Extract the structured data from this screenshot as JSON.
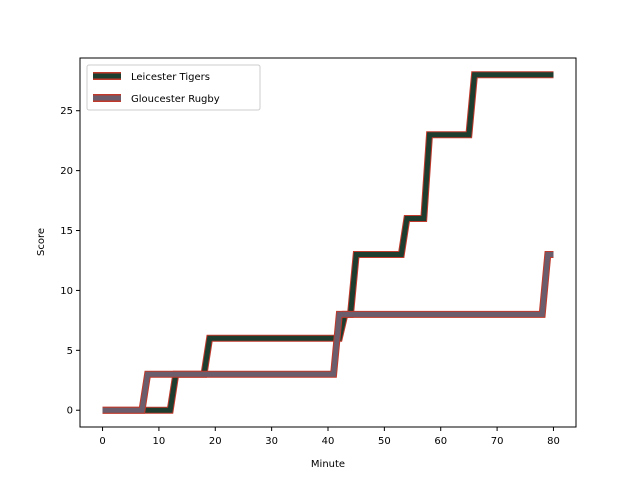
{
  "chart_data": {
    "type": "line",
    "xlabel": "Minute",
    "ylabel": "Score",
    "xlim": [
      -4,
      84
    ],
    "ylim": [
      -1.4,
      29.4
    ],
    "xticks": [
      0,
      10,
      20,
      30,
      40,
      50,
      60,
      70,
      80
    ],
    "yticks": [
      0,
      5,
      10,
      15,
      20,
      25
    ],
    "legend_position": "top-left",
    "grid": false,
    "series": [
      {
        "name": "Leicester Tigers",
        "color": "#1e3d2f",
        "edge_color": "#c0392b",
        "x": [
          0,
          12,
          13,
          18,
          19,
          42,
          43,
          44,
          45,
          53,
          54,
          57,
          58,
          65,
          66,
          80
        ],
        "y": [
          0,
          0,
          3,
          3,
          6,
          6,
          8,
          8,
          13,
          13,
          16,
          16,
          23,
          23,
          28,
          28
        ]
      },
      {
        "name": "Gloucester Rugby",
        "color": "#6b5d6b",
        "edge_color": "#c0392b",
        "x": [
          0,
          7,
          8,
          41,
          42,
          78,
          79,
          80
        ],
        "y": [
          0,
          0,
          3,
          3,
          8,
          8,
          13,
          13
        ]
      }
    ]
  }
}
